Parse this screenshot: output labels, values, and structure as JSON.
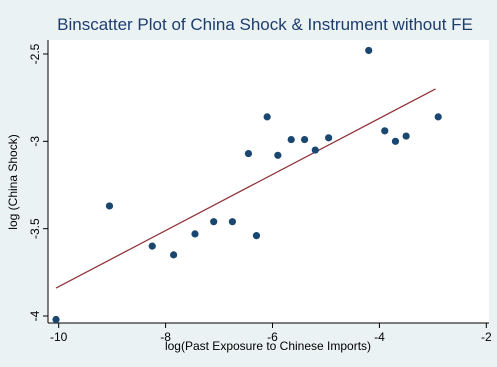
{
  "chart_data": {
    "type": "scatter",
    "title": "Binscatter Plot of China Shock & Instrument without FE",
    "xlabel": "log(Past Exposure to Chinese Imports)",
    "ylabel": "log (China Shock)",
    "xlim": [
      -10.2,
      -1.95
    ],
    "ylim": [
      -4.04,
      -2.42
    ],
    "xticks": [
      -10,
      -8,
      -6,
      -4,
      -2
    ],
    "yticks": [
      -4,
      -3.5,
      -3,
      -2.5
    ],
    "xtick_labels": [
      "-10",
      "-8",
      "-6",
      "-4",
      "-2"
    ],
    "ytick_labels": [
      "-4",
      "-3.5",
      "-3",
      "-2.5"
    ],
    "grid": false,
    "legend": "none",
    "series": [
      {
        "kind": "points",
        "x": [
          -10.05,
          -9.05,
          -8.25,
          -7.85,
          -7.45,
          -7.1,
          -6.75,
          -6.45,
          -6.3,
          -6.1,
          -5.9,
          -5.65,
          -5.4,
          -5.2,
          -4.95,
          -4.2,
          -3.9,
          -3.7,
          -3.5,
          -2.9
        ],
        "y": [
          -4.02,
          -3.37,
          -3.6,
          -3.65,
          -3.53,
          -3.46,
          -3.46,
          -3.07,
          -3.54,
          -2.86,
          -3.08,
          -2.99,
          -2.99,
          -3.05,
          -2.98,
          -2.48,
          -2.94,
          -3.0,
          -2.97,
          -2.86
        ]
      },
      {
        "kind": "fit-line",
        "x": [
          -10.05,
          -2.95
        ],
        "y": [
          -3.84,
          -2.7
        ]
      }
    ],
    "colors": {
      "background": "#eaf2f3",
      "plot_background": "#ffffff",
      "points": "#1a476f",
      "fit_line": "#90353b",
      "title": "#1e3d6e"
    }
  }
}
